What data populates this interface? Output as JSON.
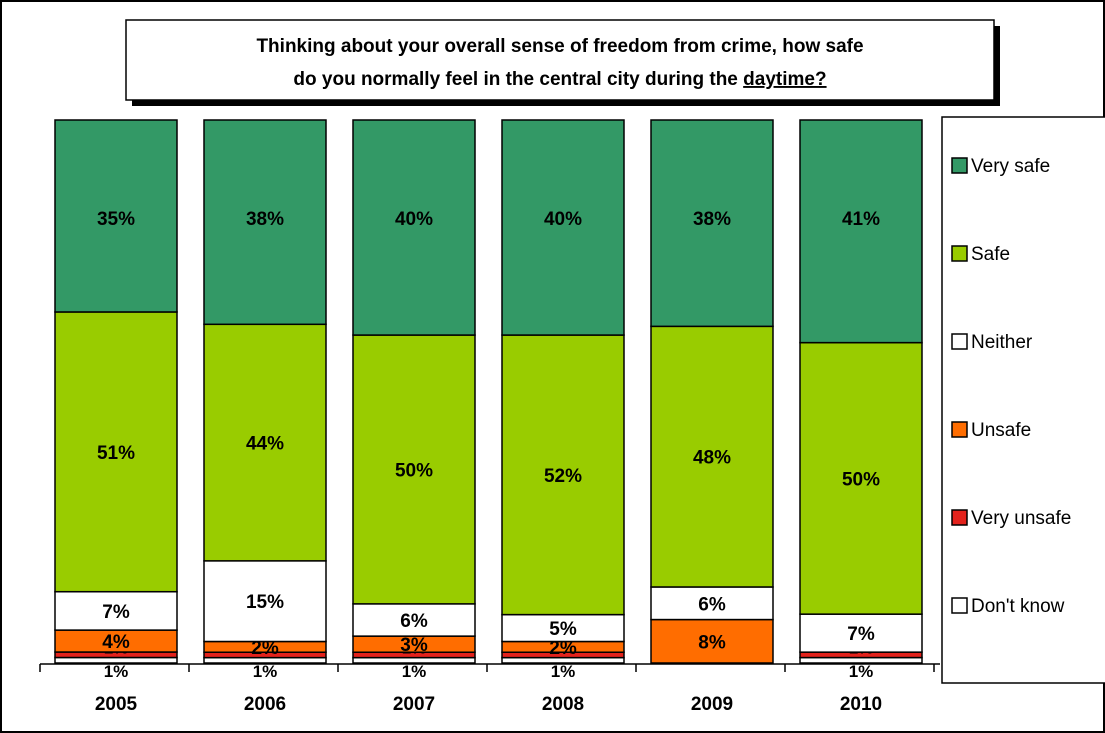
{
  "chart_data": {
    "type": "bar",
    "stacked": true,
    "percent_stacked": true,
    "title_line1": "Thinking about your overall sense of freedom from crime, how safe",
    "title_line2_prefix": "do you normally feel in the central city during the ",
    "title_line2_underlined": "daytime?",
    "categories": [
      "2005",
      "2006",
      "2007",
      "2008",
      "2009",
      "2010"
    ],
    "series": [
      {
        "name": "Don't know",
        "color": "#ffffff",
        "values": [
          1,
          1,
          1,
          1,
          0,
          1
        ],
        "labels": [
          "1%",
          "1%",
          "1%",
          "1%",
          "",
          "1%"
        ]
      },
      {
        "name": "Very unsafe",
        "color": "#e3221c",
        "values": [
          1,
          1,
          1,
          1,
          0,
          1
        ],
        "labels": [
          "1%",
          "1%",
          "1%",
          "1%",
          "",
          "1%"
        ]
      },
      {
        "name": "Unsafe",
        "color": "#ff6d00",
        "values": [
          4,
          2,
          3,
          2,
          8,
          0
        ],
        "labels": [
          "4%",
          "2%",
          "3%",
          "2%",
          "8%",
          ""
        ]
      },
      {
        "name": "Neither",
        "color": "#ffffff",
        "values": [
          7,
          15,
          6,
          5,
          6,
          7
        ],
        "labels": [
          "7%",
          "15%",
          "6%",
          "5%",
          "6%",
          "7%"
        ]
      },
      {
        "name": "Safe",
        "color": "#99cc00",
        "values": [
          51,
          44,
          50,
          52,
          48,
          50
        ],
        "labels": [
          "51%",
          "44%",
          "50%",
          "52%",
          "48%",
          "50%"
        ]
      },
      {
        "name": "Very safe",
        "color": "#339966",
        "values": [
          35,
          38,
          40,
          40,
          38,
          41
        ],
        "labels": [
          "35%",
          "38%",
          "40%",
          "40%",
          "38%",
          "41%"
        ]
      }
    ],
    "legend": {
      "position": "right",
      "entries": [
        {
          "name": "Very safe",
          "color": "#339966"
        },
        {
          "name": "Safe",
          "color": "#99cc00"
        },
        {
          "name": "Neither",
          "color": "#ffffff"
        },
        {
          "name": "Unsafe",
          "color": "#ff6d00"
        },
        {
          "name": "Very unsafe",
          "color": "#e3221c"
        },
        {
          "name": "Don't know",
          "color": "#ffffff"
        }
      ]
    },
    "ylim": [
      0,
      100
    ],
    "grid": false
  }
}
